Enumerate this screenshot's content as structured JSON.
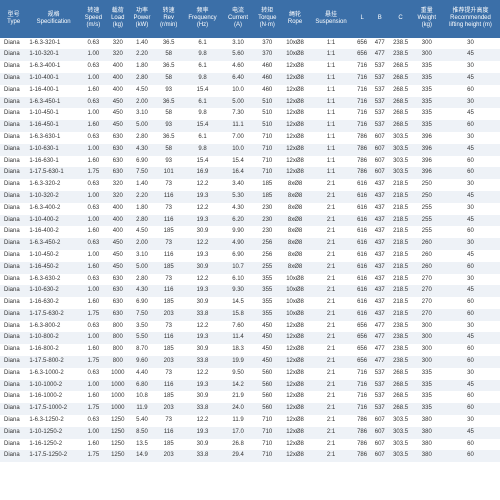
{
  "table": {
    "headers": [
      "型号\nType",
      "规格\nSpecification",
      "转速\nSpeed\n(m/s)",
      "载荷\nLoad\n(kg)",
      "功率\nPower\n(kW)",
      "转速\nRev\n(r/min)",
      "频率\nFrequency\n(Hz)",
      "电流\nCurrent\n(A)",
      "转矩\nTorque\n(N·m)",
      "绳轮\nRope",
      "悬挂\nSuspension",
      "L",
      "B",
      "C",
      "重量\nWeight\n(kg)",
      "推荐提升高度\nRecommended\nlifting height (m)"
    ],
    "header_bg": "#3b6fa8",
    "header_color": "#ffffff",
    "row_odd_bg": "#ffffff",
    "row_even_bg": "#eef2f7",
    "text_color": "#333333",
    "rows": [
      [
        "Diana",
        "1-6.3-320-1",
        "0.63",
        "320",
        "1.40",
        "36.5",
        "6.1",
        "3.10",
        "370",
        "10xØ8",
        "1:1",
        "656",
        "477",
        "238.5",
        "300",
        "30"
      ],
      [
        "Diana",
        "1-10-320-1",
        "1.00",
        "320",
        "2.20",
        "58",
        "9.8",
        "5.60",
        "370",
        "10xØ8",
        "1:1",
        "656",
        "477",
        "238.5",
        "300",
        "45"
      ],
      [
        "Diana",
        "1-6.3-400-1",
        "0.63",
        "400",
        "1.80",
        "36.5",
        "6.1",
        "4.60",
        "460",
        "12xØ8",
        "1:1",
        "716",
        "537",
        "268.5",
        "335",
        "30"
      ],
      [
        "Diana",
        "1-10-400-1",
        "1.00",
        "400",
        "2.80",
        "58",
        "9.8",
        "6.40",
        "460",
        "12xØ8",
        "1:1",
        "716",
        "537",
        "268.5",
        "335",
        "45"
      ],
      [
        "Diana",
        "1-16-400-1",
        "1.60",
        "400",
        "4.50",
        "93",
        "15.4",
        "10.0",
        "460",
        "12xØ8",
        "1:1",
        "716",
        "537",
        "268.5",
        "335",
        "60"
      ],
      [
        "Diana",
        "1-6.3-450-1",
        "0.63",
        "450",
        "2.00",
        "36.5",
        "6.1",
        "5.00",
        "510",
        "12xØ8",
        "1:1",
        "716",
        "537",
        "268.5",
        "335",
        "30"
      ],
      [
        "Diana",
        "1-10-450-1",
        "1.00",
        "450",
        "3.10",
        "58",
        "9.8",
        "7.30",
        "510",
        "12xØ8",
        "1:1",
        "716",
        "537",
        "268.5",
        "335",
        "45"
      ],
      [
        "Diana",
        "1-16-450-1",
        "1.60",
        "450",
        "5.00",
        "93",
        "15.4",
        "11.1",
        "510",
        "12xØ8",
        "1:1",
        "716",
        "537",
        "268.5",
        "335",
        "60"
      ],
      [
        "Diana",
        "1-6.3-630-1",
        "0.63",
        "630",
        "2.80",
        "36.5",
        "6.1",
        "7.00",
        "710",
        "12xØ8",
        "1:1",
        "786",
        "607",
        "303.5",
        "396",
        "30"
      ],
      [
        "Diana",
        "1-10-630-1",
        "1.00",
        "630",
        "4.30",
        "58",
        "9.8",
        "10.0",
        "710",
        "12xØ8",
        "1:1",
        "786",
        "607",
        "303.5",
        "396",
        "45"
      ],
      [
        "Diana",
        "1-16-630-1",
        "1.60",
        "630",
        "6.90",
        "93",
        "15.4",
        "15.4",
        "710",
        "12xØ8",
        "1:1",
        "786",
        "607",
        "303.5",
        "396",
        "60"
      ],
      [
        "Diana",
        "1-17.5-630-1",
        "1.75",
        "630",
        "7.50",
        "101",
        "16.9",
        "16.4",
        "710",
        "12xØ8",
        "1:1",
        "786",
        "607",
        "303.5",
        "396",
        "60"
      ],
      [
        "Diana",
        "1-6.3-320-2",
        "0.63",
        "320",
        "1.40",
        "73",
        "12.2",
        "3.40",
        "185",
        "8xØ8",
        "2:1",
        "616",
        "437",
        "218.5",
        "250",
        "30"
      ],
      [
        "Diana",
        "1-10-320-2",
        "1.00",
        "320",
        "2.20",
        "116",
        "19.3",
        "5.30",
        "185",
        "8xØ8",
        "2:1",
        "616",
        "437",
        "218.5",
        "250",
        "45"
      ],
      [
        "Diana",
        "1-6.3-400-2",
        "0.63",
        "400",
        "1.80",
        "73",
        "12.2",
        "4.30",
        "230",
        "8xØ8",
        "2:1",
        "616",
        "437",
        "218.5",
        "255",
        "30"
      ],
      [
        "Diana",
        "1-10-400-2",
        "1.00",
        "400",
        "2.80",
        "116",
        "19.3",
        "6.20",
        "230",
        "8xØ8",
        "2:1",
        "616",
        "437",
        "218.5",
        "255",
        "45"
      ],
      [
        "Diana",
        "1-16-400-2",
        "1.60",
        "400",
        "4.50",
        "185",
        "30.9",
        "9.90",
        "230",
        "8xØ8",
        "2:1",
        "616",
        "437",
        "218.5",
        "255",
        "60"
      ],
      [
        "Diana",
        "1-6.3-450-2",
        "0.63",
        "450",
        "2.00",
        "73",
        "12.2",
        "4.90",
        "256",
        "8xØ8",
        "2:1",
        "616",
        "437",
        "218.5",
        "260",
        "30"
      ],
      [
        "Diana",
        "1-10-450-2",
        "1.00",
        "450",
        "3.10",
        "116",
        "19.3",
        "6.90",
        "256",
        "8xØ8",
        "2:1",
        "616",
        "437",
        "218.5",
        "260",
        "45"
      ],
      [
        "Diana",
        "1-16-450-2",
        "1.60",
        "450",
        "5.00",
        "185",
        "30.9",
        "10.7",
        "255",
        "8xØ8",
        "2:1",
        "616",
        "437",
        "218.5",
        "260",
        "60"
      ],
      [
        "Diana",
        "1-6.3-630-2",
        "0.63",
        "630",
        "2.80",
        "73",
        "12.2",
        "6.10",
        "355",
        "10xØ8",
        "2:1",
        "616",
        "437",
        "218.5",
        "270",
        "30"
      ],
      [
        "Diana",
        "1-10-630-2",
        "1.00",
        "630",
        "4.30",
        "116",
        "19.3",
        "9.30",
        "355",
        "10xØ8",
        "2:1",
        "616",
        "437",
        "218.5",
        "270",
        "45"
      ],
      [
        "Diana",
        "1-16-630-2",
        "1.60",
        "630",
        "6.90",
        "185",
        "30.9",
        "14.5",
        "355",
        "10xØ8",
        "2:1",
        "616",
        "437",
        "218.5",
        "270",
        "60"
      ],
      [
        "Diana",
        "1-17.5-630-2",
        "1.75",
        "630",
        "7.50",
        "203",
        "33.8",
        "15.8",
        "355",
        "10xØ8",
        "2:1",
        "616",
        "437",
        "218.5",
        "270",
        "60"
      ],
      [
        "Diana",
        "1-6.3-800-2",
        "0.63",
        "800",
        "3.50",
        "73",
        "12.2",
        "7.60",
        "450",
        "12xØ8",
        "2:1",
        "656",
        "477",
        "238.5",
        "300",
        "30"
      ],
      [
        "Diana",
        "1-10-800-2",
        "1.00",
        "800",
        "5.50",
        "116",
        "19.3",
        "11.4",
        "450",
        "12xØ8",
        "2:1",
        "656",
        "477",
        "238.5",
        "300",
        "45"
      ],
      [
        "Diana",
        "1-16-800-2",
        "1.60",
        "800",
        "8.70",
        "185",
        "30.9",
        "18.3",
        "450",
        "12xØ8",
        "2:1",
        "656",
        "477",
        "238.5",
        "300",
        "60"
      ],
      [
        "Diana",
        "1-17.5-800-2",
        "1.75",
        "800",
        "9.60",
        "203",
        "33.8",
        "19.9",
        "450",
        "12xØ8",
        "2:1",
        "656",
        "477",
        "238.5",
        "300",
        "60"
      ],
      [
        "Diana",
        "1-6.3-1000-2",
        "0.63",
        "1000",
        "4.40",
        "73",
        "12.2",
        "9.50",
        "560",
        "12xØ8",
        "2:1",
        "716",
        "537",
        "268.5",
        "335",
        "30"
      ],
      [
        "Diana",
        "1-10-1000-2",
        "1.00",
        "1000",
        "6.80",
        "116",
        "19.3",
        "14.2",
        "560",
        "12xØ8",
        "2:1",
        "716",
        "537",
        "268.5",
        "335",
        "45"
      ],
      [
        "Diana",
        "1-16-1000-2",
        "1.60",
        "1000",
        "10.8",
        "185",
        "30.9",
        "21.9",
        "560",
        "12xØ8",
        "2:1",
        "716",
        "537",
        "268.5",
        "335",
        "60"
      ],
      [
        "Diana",
        "1-17.5-1000-2",
        "1.75",
        "1000",
        "11.9",
        "203",
        "33.8",
        "24.0",
        "560",
        "12xØ8",
        "2:1",
        "716",
        "537",
        "268.5",
        "335",
        "60"
      ],
      [
        "Diana",
        "1-6.3-1250-2",
        "0.63",
        "1250",
        "5.40",
        "73",
        "12.2",
        "11.9",
        "710",
        "12xØ8",
        "2:1",
        "786",
        "607",
        "303.5",
        "380",
        "30"
      ],
      [
        "Diana",
        "1-10-1250-2",
        "1.00",
        "1250",
        "8.50",
        "116",
        "19.3",
        "17.0",
        "710",
        "12xØ8",
        "2:1",
        "786",
        "607",
        "303.5",
        "380",
        "45"
      ],
      [
        "Diana",
        "1-16-1250-2",
        "1.60",
        "1250",
        "13.5",
        "185",
        "30.9",
        "26.8",
        "710",
        "12xØ8",
        "2:1",
        "786",
        "607",
        "303.5",
        "380",
        "60"
      ],
      [
        "Diana",
        "1-17.5-1250-2",
        "1.75",
        "1250",
        "14.9",
        "203",
        "33.8",
        "29.4",
        "710",
        "12xØ8",
        "2:1",
        "786",
        "607",
        "303.5",
        "380",
        "60"
      ]
    ]
  }
}
